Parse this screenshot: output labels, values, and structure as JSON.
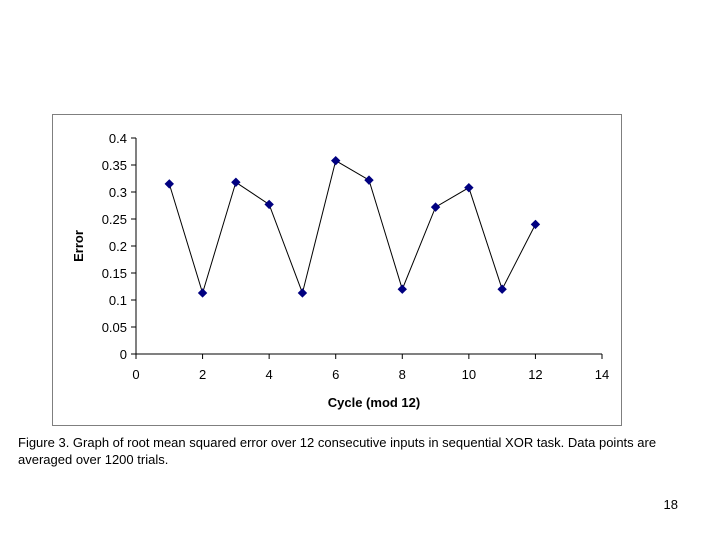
{
  "chart_data": {
    "type": "scatter",
    "title": "",
    "xlabel": "Cycle (mod 12)",
    "ylabel": "Error",
    "xlim": [
      0,
      14
    ],
    "ylim": [
      0,
      0.4
    ],
    "x_ticks": [
      0,
      2,
      4,
      6,
      8,
      10,
      12,
      14
    ],
    "x_tick_labels": [
      "0",
      "2",
      "4",
      "6",
      "8",
      "10",
      "12",
      "14"
    ],
    "y_ticks": [
      0,
      0.05,
      0.1,
      0.15,
      0.2,
      0.25,
      0.3,
      0.35,
      0.4
    ],
    "y_tick_labels": [
      "0",
      "0.05",
      "0.1",
      "0.15",
      "0.2",
      "0.25",
      "0.3",
      "0.35",
      "0.4"
    ],
    "grid": false,
    "legend": "none",
    "marker_color": "#000080",
    "line_color": "#000000",
    "series": [
      {
        "x": [
          1,
          2,
          3,
          4,
          5,
          6,
          7,
          8,
          9,
          10,
          11,
          12
        ],
        "y": [
          0.315,
          0.113,
          0.318,
          0.277,
          0.113,
          0.358,
          0.322,
          0.12,
          0.272,
          0.308,
          0.12,
          0.24
        ]
      }
    ]
  },
  "caption": "Figure 3.  Graph of root mean squared error over 12 consecutive inputs in sequential XOR task. Data points are averaged over 1200 trials.",
  "page_number": "18"
}
